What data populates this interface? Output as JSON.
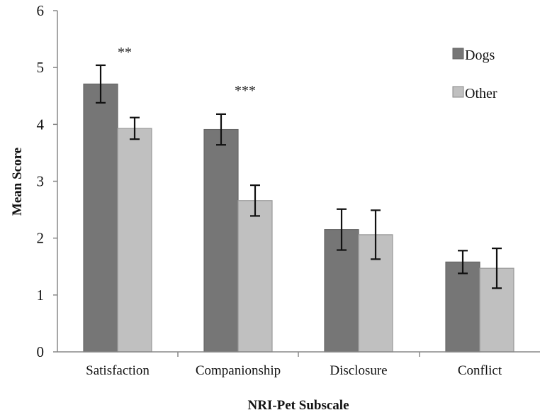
{
  "chart_data": {
    "type": "bar",
    "title": "",
    "xlabel": "NRI-Pet Subscale",
    "ylabel": "Mean Score",
    "ylim": [
      0,
      6
    ],
    "yticks": [
      "0",
      "1",
      "2",
      "3",
      "4",
      "5",
      "6"
    ],
    "grid": false,
    "legend_position": "top-right",
    "categories": [
      "Satisfaction",
      "Companionship",
      "Disclosure",
      "Conflict"
    ],
    "series": [
      {
        "name": "Dogs",
        "color": "#767676",
        "values": [
          4.71,
          3.91,
          2.15,
          1.58
        ],
        "errors": [
          0.33,
          0.27,
          0.36,
          0.2
        ]
      },
      {
        "name": "Other",
        "color": "#c0c0c0",
        "values": [
          3.93,
          2.66,
          2.06,
          1.47
        ],
        "errors": [
          0.19,
          0.27,
          0.43,
          0.35
        ]
      }
    ],
    "annotations": [
      "**",
      "***",
      "",
      ""
    ]
  }
}
